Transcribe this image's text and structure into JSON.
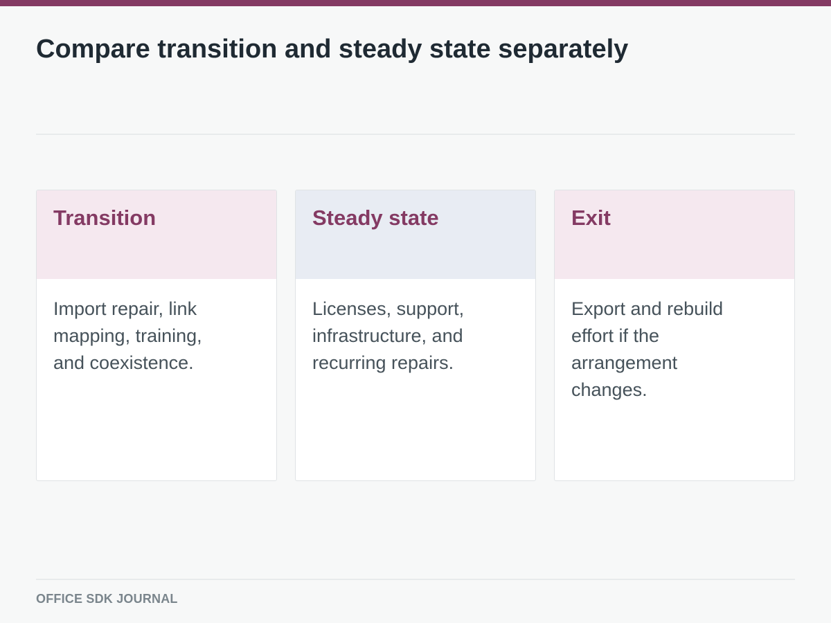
{
  "page": {
    "title": "Compare transition and steady state separately"
  },
  "cards": [
    {
      "title": "Transition",
      "body": "Import repair, link mapping, training, and coexistence.",
      "header_color": "#f5e8ef"
    },
    {
      "title": "Steady state",
      "body": "Licenses, support, infrastructure, and recurring repairs.",
      "header_color": "#e8ecf3"
    },
    {
      "title": "Exit",
      "body": "Export and rebuild effort if the arrangement changes.",
      "header_color": "#f5e8ef"
    }
  ],
  "footer": {
    "label": "OFFICE SDK JOURNAL"
  },
  "colors": {
    "accent": "#843a63",
    "title_text": "#1f2a33",
    "body_text": "#46525a",
    "footer_text": "#7a858c",
    "background": "#f7f8f8"
  }
}
